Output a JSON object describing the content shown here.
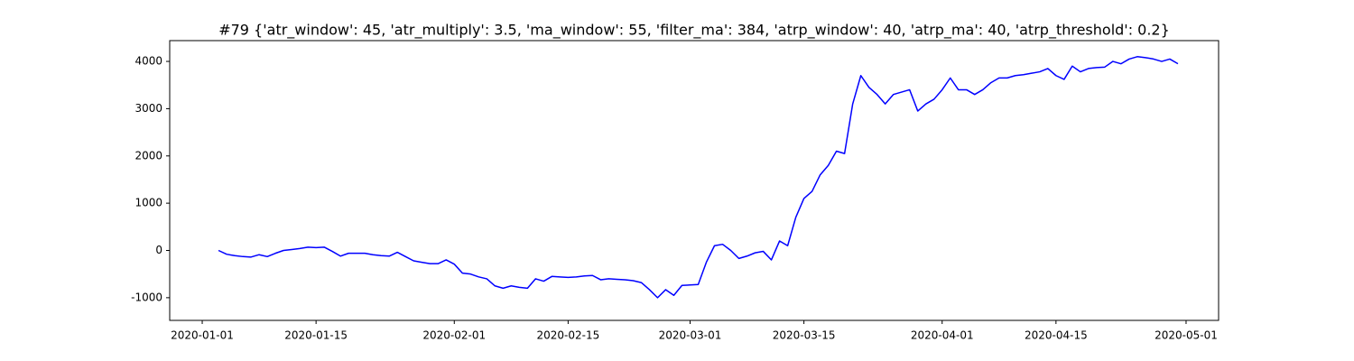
{
  "chart_data": {
    "type": "line",
    "title": "#79 {'atr_window': 45, 'atr_multiply': 3.5, 'ma_window': 55, 'filter_ma': 384, 'atrp_window': 40, 'atrp_ma': 40, 'atrp_threshold': 0.2}",
    "color": "#0000ff",
    "x": [
      "2020-01-03",
      "2020-01-04",
      "2020-01-05",
      "2020-01-06",
      "2020-01-07",
      "2020-01-08",
      "2020-01-09",
      "2020-01-10",
      "2020-01-11",
      "2020-01-12",
      "2020-01-13",
      "2020-01-14",
      "2020-01-15",
      "2020-01-16",
      "2020-01-17",
      "2020-01-18",
      "2020-01-19",
      "2020-01-20",
      "2020-01-21",
      "2020-01-22",
      "2020-01-23",
      "2020-01-24",
      "2020-01-25",
      "2020-01-26",
      "2020-01-27",
      "2020-01-28",
      "2020-01-29",
      "2020-01-30",
      "2020-01-31",
      "2020-02-01",
      "2020-02-02",
      "2020-02-03",
      "2020-02-04",
      "2020-02-05",
      "2020-02-06",
      "2020-02-07",
      "2020-02-08",
      "2020-02-09",
      "2020-02-10",
      "2020-02-11",
      "2020-02-12",
      "2020-02-13",
      "2020-02-14",
      "2020-02-15",
      "2020-02-16",
      "2020-02-17",
      "2020-02-18",
      "2020-02-19",
      "2020-02-20",
      "2020-02-21",
      "2020-02-22",
      "2020-02-23",
      "2020-02-24",
      "2020-02-25",
      "2020-02-26",
      "2020-02-27",
      "2020-02-28",
      "2020-02-29",
      "2020-03-01",
      "2020-03-02",
      "2020-03-03",
      "2020-03-04",
      "2020-03-05",
      "2020-03-06",
      "2020-03-07",
      "2020-03-08",
      "2020-03-09",
      "2020-03-10",
      "2020-03-11",
      "2020-03-12",
      "2020-03-13",
      "2020-03-14",
      "2020-03-15",
      "2020-03-16",
      "2020-03-17",
      "2020-03-18",
      "2020-03-19",
      "2020-03-20",
      "2020-03-21",
      "2020-03-22",
      "2020-03-23",
      "2020-03-24",
      "2020-03-25",
      "2020-03-26",
      "2020-03-27",
      "2020-03-28",
      "2020-03-29",
      "2020-03-30",
      "2020-03-31",
      "2020-04-01",
      "2020-04-02",
      "2020-04-03",
      "2020-04-04",
      "2020-04-05",
      "2020-04-06",
      "2020-04-07",
      "2020-04-08",
      "2020-04-09",
      "2020-04-10",
      "2020-04-11",
      "2020-04-12",
      "2020-04-13",
      "2020-04-14",
      "2020-04-15",
      "2020-04-16",
      "2020-04-17",
      "2020-04-18",
      "2020-04-19",
      "2020-04-20",
      "2020-04-21",
      "2020-04-22",
      "2020-04-23",
      "2020-04-24",
      "2020-04-25",
      "2020-04-26",
      "2020-04-27",
      "2020-04-28",
      "2020-04-29",
      "2020-04-30"
    ],
    "values": [
      0,
      -80,
      -110,
      -130,
      -140,
      -90,
      -130,
      -60,
      0,
      20,
      40,
      70,
      60,
      70,
      -20,
      -120,
      -60,
      -60,
      -60,
      -90,
      -110,
      -120,
      -40,
      -130,
      -220,
      -250,
      -280,
      -280,
      -200,
      -290,
      -480,
      -500,
      -560,
      -600,
      -750,
      -800,
      -750,
      -780,
      -800,
      -600,
      -650,
      -550,
      -560,
      -570,
      -560,
      -540,
      -530,
      -620,
      -600,
      -610,
      -620,
      -640,
      -680,
      -830,
      -1000,
      -830,
      -950,
      -740,
      -730,
      -720,
      -250,
      100,
      130,
      0,
      -170,
      -120,
      -50,
      -20,
      -200,
      200,
      100,
      700,
      1100,
      1250,
      1600,
      1800,
      2100,
      2050,
      3100,
      3700,
      3450,
      3300,
      3100,
      3300,
      3350,
      3400,
      2950,
      3100,
      3200,
      3400,
      3650,
      3400,
      3400,
      3300,
      3400,
      3550,
      3650,
      3650,
      3700,
      3720,
      3750,
      3780,
      3850,
      3700,
      3620,
      3900,
      3780,
      3850,
      3870,
      3880,
      4000,
      3950,
      4050,
      4100,
      4080,
      4050,
      4000,
      4050,
      3950
    ],
    "xlim": [
      "2019-12-28",
      "2020-05-05"
    ],
    "xticks": [
      "2020-01-01",
      "2020-01-15",
      "2020-02-01",
      "2020-02-15",
      "2020-03-01",
      "2020-03-15",
      "2020-04-01",
      "2020-04-15",
      "2020-05-01"
    ],
    "ylim": [
      -1480,
      4440
    ],
    "yticks": [
      -1000,
      0,
      1000,
      2000,
      3000,
      4000
    ]
  }
}
